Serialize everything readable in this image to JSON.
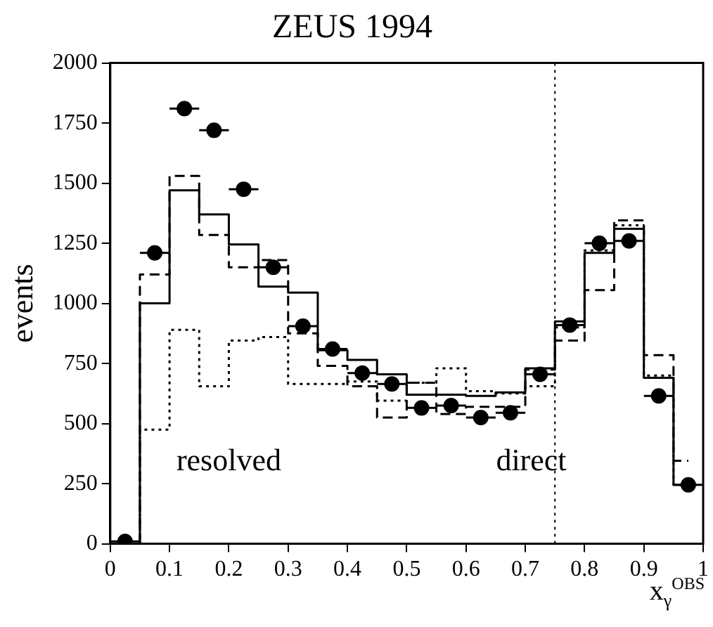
{
  "chart_data": {
    "type": "step",
    "title": "ZEUS 1994",
    "xlabel": "x$_{γ}$$^{OBS}$",
    "ylabel": "events",
    "x": [
      0.025,
      0.075,
      0.125,
      0.175,
      0.225,
      0.275,
      0.325,
      0.375,
      0.425,
      0.475,
      0.525,
      0.575,
      0.625,
      0.675,
      0.725,
      0.775,
      0.825,
      0.875,
      0.925,
      0.975
    ],
    "series": [
      {
        "color": "#000000",
        "line_style": "solid",
        "values": [
          0,
          1000,
          1470,
          1370,
          1245,
          1070,
          1045,
          805,
          765,
          705,
          620,
          620,
          615,
          630,
          730,
          925,
          1210,
          1310,
          690,
          245
        ]
      },
      {
        "color": "#000000",
        "line_style": "dashed",
        "values": [
          0,
          1120,
          1530,
          1285,
          1150,
          1180,
          875,
          740,
          655,
          525,
          670,
          540,
          570,
          570,
          725,
          845,
          1055,
          1345,
          785,
          345
        ]
      },
      {
        "color": "#000000",
        "line_style": "dotted",
        "values": [
          0,
          475,
          890,
          655,
          845,
          860,
          665,
          665,
          675,
          595,
          670,
          730,
          635,
          625,
          655,
          900,
          1220,
          1325,
          700,
          245
        ]
      },
      {
        "type": "scatter",
        "color": "#000000",
        "marker": "circle",
        "values": [
          10,
          1210,
          1810,
          1720,
          1475,
          1150,
          905,
          810,
          710,
          665,
          565,
          575,
          525,
          545,
          705,
          910,
          1250,
          1260,
          615,
          245
        ],
        "xerrors": [
          0.025,
          0.025,
          0.025,
          0.025,
          0.025,
          0.025,
          0.025,
          0.025,
          0.025,
          0.025,
          0.025,
          0.025,
          0.025,
          0.025,
          0.025,
          0.025,
          0.025,
          0.025,
          0.025,
          0.025
        ]
      }
    ],
    "xlim": [
      0,
      1
    ],
    "ylim": [
      0,
      2000
    ],
    "xticks": [
      0,
      0.1,
      0.2,
      0.3,
      0.4,
      0.5,
      0.6,
      0.7,
      0.8,
      0.9,
      1
    ],
    "yticks": [
      0,
      250,
      500,
      750,
      1000,
      1250,
      1500,
      1750,
      2000
    ],
    "ref_lines": [
      {
        "axis": "x",
        "value": 0.75,
        "line_style": "dotted",
        "color": "#000000"
      }
    ],
    "annotations": [
      "resolved",
      "direct"
    ],
    "grid": false,
    "legend": false
  }
}
